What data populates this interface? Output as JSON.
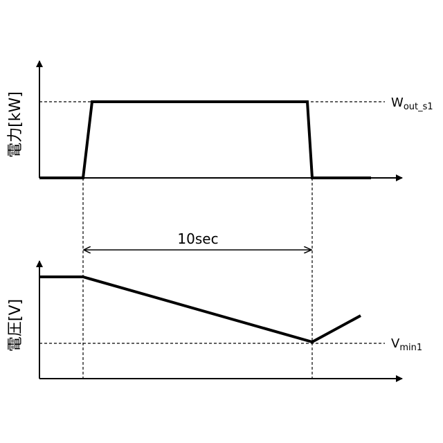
{
  "power_panel": {
    "ylabel": "電力[kW]",
    "level_label_main": "W",
    "level_label_sub": "out_s1"
  },
  "voltage_panel": {
    "ylabel": "電圧[V]",
    "level_label_main": "V",
    "level_label_sub": "min1"
  },
  "interval": {
    "label": "10sec"
  }
}
